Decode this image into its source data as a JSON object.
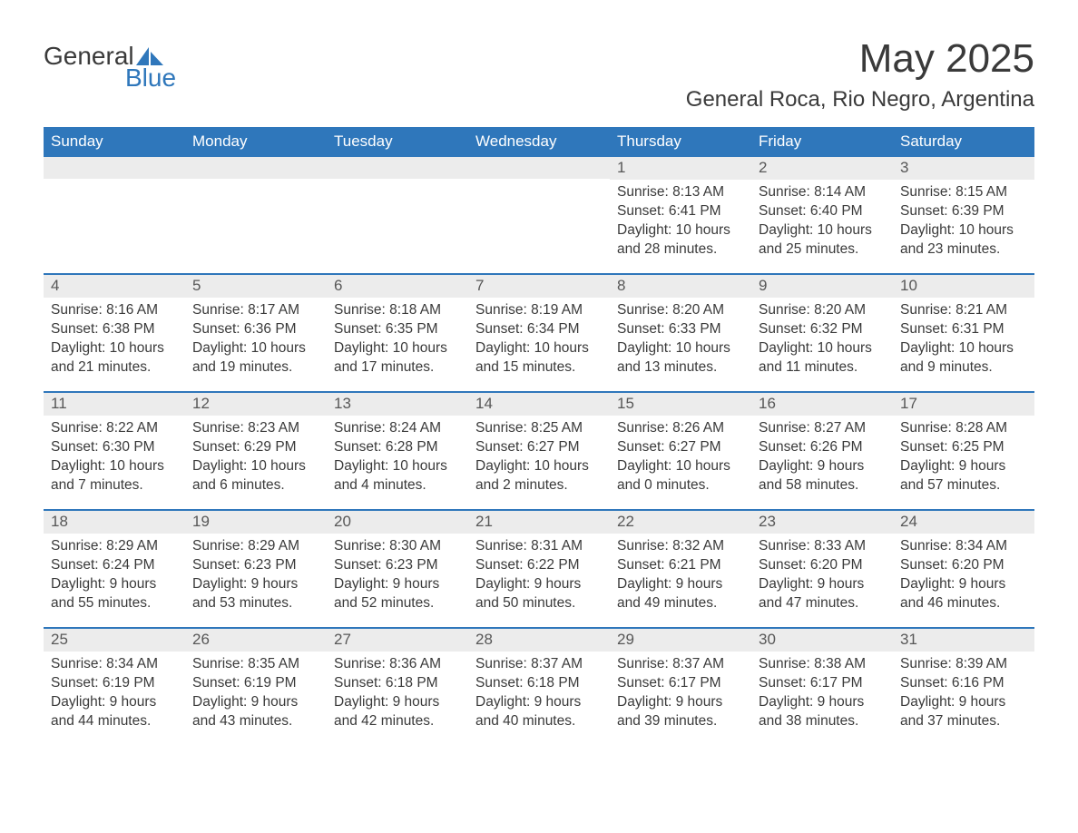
{
  "logo": {
    "text1": "General",
    "text2": "Blue",
    "sail_color": "#2f77bb"
  },
  "header": {
    "month_title": "May 2025",
    "location": "General Roca, Rio Negro, Argentina"
  },
  "colors": {
    "header_bg": "#2f77bb",
    "header_text": "#ffffff",
    "daynum_bg": "#ececec",
    "daynum_text": "#575757",
    "body_text": "#3a3a3a",
    "row_divider": "#2f77bb",
    "page_bg": "#ffffff"
  },
  "typography": {
    "title_fontsize": 44,
    "location_fontsize": 24,
    "dayheader_fontsize": 17,
    "daynum_fontsize": 17,
    "body_fontsize": 15.5,
    "font_family": "Arial"
  },
  "day_headers": [
    "Sunday",
    "Monday",
    "Tuesday",
    "Wednesday",
    "Thursday",
    "Friday",
    "Saturday"
  ],
  "weeks": [
    [
      {
        "empty": true
      },
      {
        "empty": true
      },
      {
        "empty": true
      },
      {
        "empty": true
      },
      {
        "num": "1",
        "sunrise": "Sunrise: 8:13 AM",
        "sunset": "Sunset: 6:41 PM",
        "daylight": "Daylight: 10 hours and 28 minutes."
      },
      {
        "num": "2",
        "sunrise": "Sunrise: 8:14 AM",
        "sunset": "Sunset: 6:40 PM",
        "daylight": "Daylight: 10 hours and 25 minutes."
      },
      {
        "num": "3",
        "sunrise": "Sunrise: 8:15 AM",
        "sunset": "Sunset: 6:39 PM",
        "daylight": "Daylight: 10 hours and 23 minutes."
      }
    ],
    [
      {
        "num": "4",
        "sunrise": "Sunrise: 8:16 AM",
        "sunset": "Sunset: 6:38 PM",
        "daylight": "Daylight: 10 hours and 21 minutes."
      },
      {
        "num": "5",
        "sunrise": "Sunrise: 8:17 AM",
        "sunset": "Sunset: 6:36 PM",
        "daylight": "Daylight: 10 hours and 19 minutes."
      },
      {
        "num": "6",
        "sunrise": "Sunrise: 8:18 AM",
        "sunset": "Sunset: 6:35 PM",
        "daylight": "Daylight: 10 hours and 17 minutes."
      },
      {
        "num": "7",
        "sunrise": "Sunrise: 8:19 AM",
        "sunset": "Sunset: 6:34 PM",
        "daylight": "Daylight: 10 hours and 15 minutes."
      },
      {
        "num": "8",
        "sunrise": "Sunrise: 8:20 AM",
        "sunset": "Sunset: 6:33 PM",
        "daylight": "Daylight: 10 hours and 13 minutes."
      },
      {
        "num": "9",
        "sunrise": "Sunrise: 8:20 AM",
        "sunset": "Sunset: 6:32 PM",
        "daylight": "Daylight: 10 hours and 11 minutes."
      },
      {
        "num": "10",
        "sunrise": "Sunrise: 8:21 AM",
        "sunset": "Sunset: 6:31 PM",
        "daylight": "Daylight: 10 hours and 9 minutes."
      }
    ],
    [
      {
        "num": "11",
        "sunrise": "Sunrise: 8:22 AM",
        "sunset": "Sunset: 6:30 PM",
        "daylight": "Daylight: 10 hours and 7 minutes."
      },
      {
        "num": "12",
        "sunrise": "Sunrise: 8:23 AM",
        "sunset": "Sunset: 6:29 PM",
        "daylight": "Daylight: 10 hours and 6 minutes."
      },
      {
        "num": "13",
        "sunrise": "Sunrise: 8:24 AM",
        "sunset": "Sunset: 6:28 PM",
        "daylight": "Daylight: 10 hours and 4 minutes."
      },
      {
        "num": "14",
        "sunrise": "Sunrise: 8:25 AM",
        "sunset": "Sunset: 6:27 PM",
        "daylight": "Daylight: 10 hours and 2 minutes."
      },
      {
        "num": "15",
        "sunrise": "Sunrise: 8:26 AM",
        "sunset": "Sunset: 6:27 PM",
        "daylight": "Daylight: 10 hours and 0 minutes."
      },
      {
        "num": "16",
        "sunrise": "Sunrise: 8:27 AM",
        "sunset": "Sunset: 6:26 PM",
        "daylight": "Daylight: 9 hours and 58 minutes."
      },
      {
        "num": "17",
        "sunrise": "Sunrise: 8:28 AM",
        "sunset": "Sunset: 6:25 PM",
        "daylight": "Daylight: 9 hours and 57 minutes."
      }
    ],
    [
      {
        "num": "18",
        "sunrise": "Sunrise: 8:29 AM",
        "sunset": "Sunset: 6:24 PM",
        "daylight": "Daylight: 9 hours and 55 minutes."
      },
      {
        "num": "19",
        "sunrise": "Sunrise: 8:29 AM",
        "sunset": "Sunset: 6:23 PM",
        "daylight": "Daylight: 9 hours and 53 minutes."
      },
      {
        "num": "20",
        "sunrise": "Sunrise: 8:30 AM",
        "sunset": "Sunset: 6:23 PM",
        "daylight": "Daylight: 9 hours and 52 minutes."
      },
      {
        "num": "21",
        "sunrise": "Sunrise: 8:31 AM",
        "sunset": "Sunset: 6:22 PM",
        "daylight": "Daylight: 9 hours and 50 minutes."
      },
      {
        "num": "22",
        "sunrise": "Sunrise: 8:32 AM",
        "sunset": "Sunset: 6:21 PM",
        "daylight": "Daylight: 9 hours and 49 minutes."
      },
      {
        "num": "23",
        "sunrise": "Sunrise: 8:33 AM",
        "sunset": "Sunset: 6:20 PM",
        "daylight": "Daylight: 9 hours and 47 minutes."
      },
      {
        "num": "24",
        "sunrise": "Sunrise: 8:34 AM",
        "sunset": "Sunset: 6:20 PM",
        "daylight": "Daylight: 9 hours and 46 minutes."
      }
    ],
    [
      {
        "num": "25",
        "sunrise": "Sunrise: 8:34 AM",
        "sunset": "Sunset: 6:19 PM",
        "daylight": "Daylight: 9 hours and 44 minutes."
      },
      {
        "num": "26",
        "sunrise": "Sunrise: 8:35 AM",
        "sunset": "Sunset: 6:19 PM",
        "daylight": "Daylight: 9 hours and 43 minutes."
      },
      {
        "num": "27",
        "sunrise": "Sunrise: 8:36 AM",
        "sunset": "Sunset: 6:18 PM",
        "daylight": "Daylight: 9 hours and 42 minutes."
      },
      {
        "num": "28",
        "sunrise": "Sunrise: 8:37 AM",
        "sunset": "Sunset: 6:18 PM",
        "daylight": "Daylight: 9 hours and 40 minutes."
      },
      {
        "num": "29",
        "sunrise": "Sunrise: 8:37 AM",
        "sunset": "Sunset: 6:17 PM",
        "daylight": "Daylight: 9 hours and 39 minutes."
      },
      {
        "num": "30",
        "sunrise": "Sunrise: 8:38 AM",
        "sunset": "Sunset: 6:17 PM",
        "daylight": "Daylight: 9 hours and 38 minutes."
      },
      {
        "num": "31",
        "sunrise": "Sunrise: 8:39 AM",
        "sunset": "Sunset: 6:16 PM",
        "daylight": "Daylight: 9 hours and 37 minutes."
      }
    ]
  ]
}
